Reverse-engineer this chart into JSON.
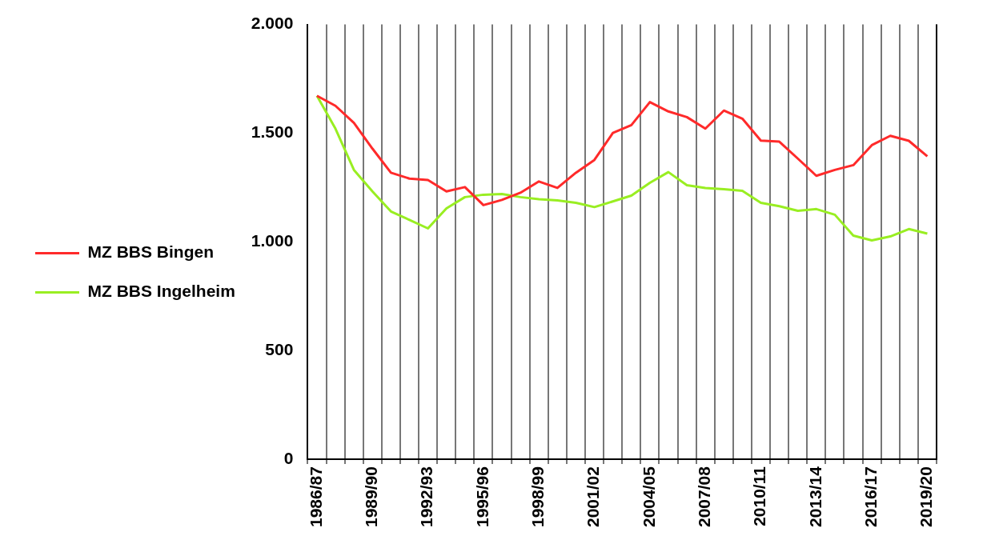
{
  "chart_data": {
    "type": "line",
    "categories": [
      "1986/87",
      null,
      null,
      "1989/90",
      null,
      null,
      "1992/93",
      null,
      null,
      "1995/96",
      null,
      null,
      "1998/99",
      null,
      null,
      "2001/02",
      null,
      null,
      "2004/05",
      null,
      null,
      "2007/08",
      null,
      null,
      "2010/11",
      null,
      null,
      "2013/14",
      null,
      null,
      "2016/17",
      null,
      null,
      "2019/20"
    ],
    "series": [
      {
        "name": "MZ BBS Bingen",
        "color": "#ff2a2a",
        "values": [
          1672,
          1626,
          1547,
          1429,
          1318,
          1291,
          1285,
          1232,
          1252,
          1169,
          1193,
          1226,
          1278,
          1248,
          1318,
          1377,
          1501,
          1537,
          1643,
          1600,
          1574,
          1521,
          1604,
          1567,
          1466,
          1461,
          1383,
          1304,
          1331,
          1353,
          1445,
          1488,
          1465,
          1394
        ]
      },
      {
        "name": "MZ BBS Ingelheim",
        "color": "#99ee22",
        "values": [
          1672,
          1521,
          1331,
          1232,
          1140,
          1101,
          1062,
          1154,
          1206,
          1217,
          1220,
          1206,
          1196,
          1191,
          1180,
          1160,
          1186,
          1213,
          1272,
          1321,
          1261,
          1248,
          1242,
          1235,
          1180,
          1164,
          1143,
          1151,
          1125,
          1029,
          1007,
          1025,
          1059,
          1038
        ]
      }
    ],
    "ylim": [
      0,
      2000
    ],
    "yticks": [
      {
        "value": 0,
        "label": "0"
      },
      {
        "value": 500,
        "label": "500"
      },
      {
        "value": 1000,
        "label": "1.000"
      },
      {
        "value": 1500,
        "label": "1.500"
      },
      {
        "value": 2000,
        "label": "2.000"
      }
    ],
    "grid": "x",
    "legend": "left",
    "marker": "none",
    "line_style": "solid"
  }
}
